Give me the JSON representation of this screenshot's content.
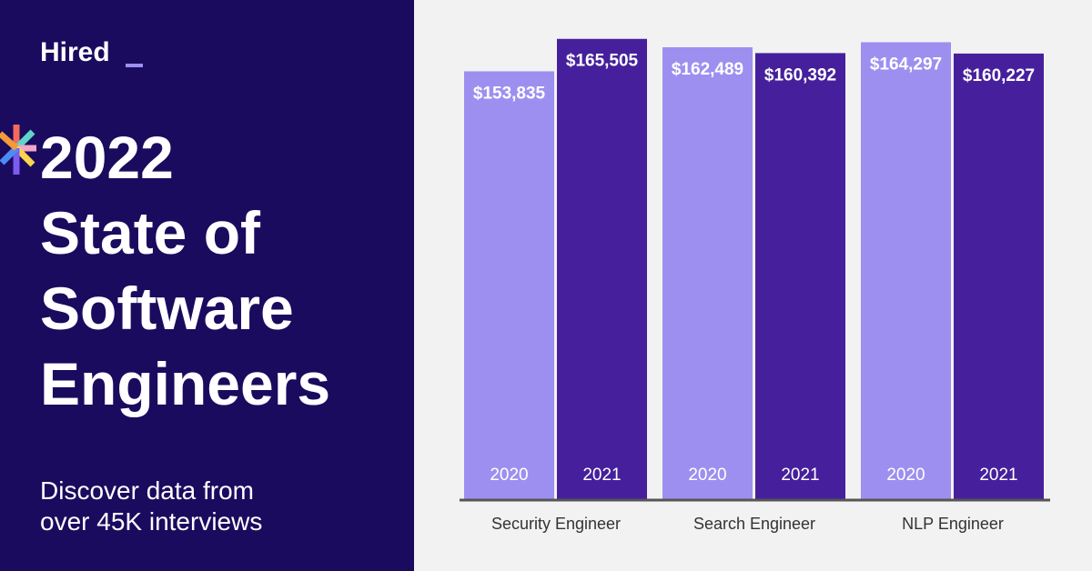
{
  "brand": "Hired",
  "headline": [
    "2022",
    "State of",
    "Software",
    "Engineers"
  ],
  "tagline": [
    "Discover data from",
    "over 45K interviews"
  ],
  "chart_data": {
    "type": "bar",
    "categories": [
      "Security Engineer",
      "Search Engineer",
      "NLP Engineer"
    ],
    "series": [
      {
        "name": "2020",
        "color": "#9d8ff0",
        "values": [
          153835,
          162489,
          164297
        ],
        "value_labels": [
          "$153,835",
          "$162,489",
          "$164,297"
        ]
      },
      {
        "name": "2021",
        "color": "#46209c",
        "values": [
          165505,
          160392,
          160227
        ],
        "value_labels": [
          "$165,505",
          "$160,392",
          "$160,227"
        ]
      }
    ],
    "ylim": [
      0,
      170000
    ]
  }
}
